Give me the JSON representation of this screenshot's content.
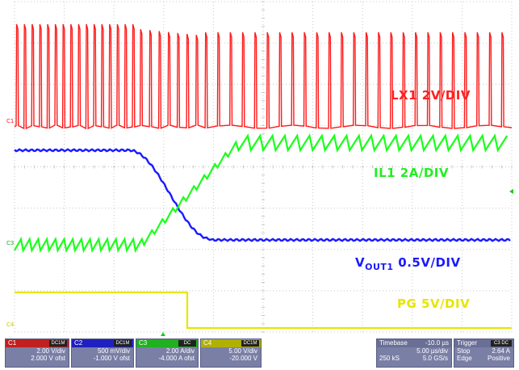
{
  "labels": {
    "lx1": "LX1 2V/DIV",
    "il1": "IL1 2A/DIV",
    "vout_main": "V",
    "vout_sub": "OUT1",
    "vout_scale": " 0.5V/DIV",
    "pg": "PG 5V/DIV"
  },
  "channel_tags": {
    "c1": "C1",
    "c2": "C2",
    "c3": "C3",
    "c4": "C4"
  },
  "colors": {
    "ch1": "#ff1a1a",
    "ch2": "#1a1aff",
    "ch3": "#1aff1a",
    "ch4": "#e6e600",
    "grid": "#c8c8c8"
  },
  "channels": [
    {
      "name": "C1",
      "coupling": "DC1M",
      "scale": "2.00 V/div",
      "offset": "2.000 V ofst",
      "color": "#ff1a1a"
    },
    {
      "name": "C2",
      "coupling": "DC1M",
      "scale": "500 mV/div",
      "offset": "-1.000 V ofst",
      "color": "#1a1aff"
    },
    {
      "name": "C3",
      "coupling": "DC",
      "scale": "2.00 A/div",
      "offset": "-4.000 A ofst",
      "color": "#1aff1a"
    },
    {
      "name": "C4",
      "coupling": "DC1M",
      "scale": "5.00 V/div",
      "offset": "-20.000 V",
      "color": "#e6e600"
    }
  ],
  "timebase": {
    "label": "Timebase",
    "value": "-10.0 µs",
    "rate": "5.00 µs/div",
    "samples": "250 kS",
    "srate": "5.0 GS/s"
  },
  "trigger": {
    "label": "Trigger",
    "coupling": "C3 DC",
    "mode": "Stop",
    "level": "2.64 A",
    "type": "Edge",
    "slope": "Positive"
  }
}
